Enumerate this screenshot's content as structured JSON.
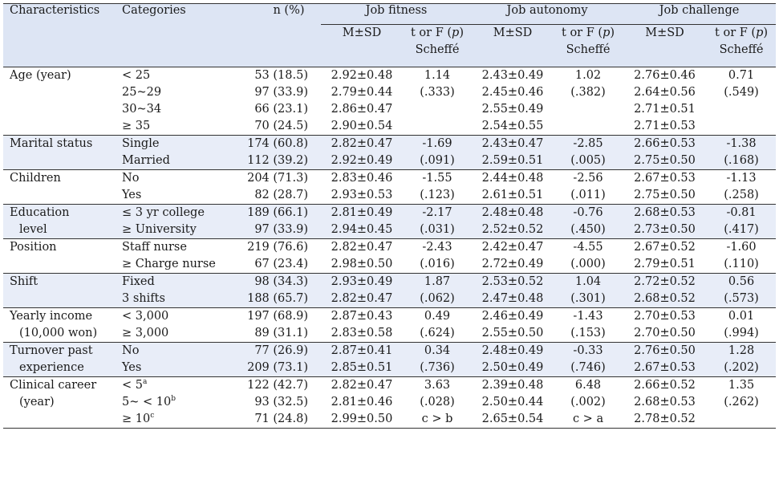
{
  "headers": {
    "characteristics": "Characteristics",
    "categories": "Categories",
    "n": "n (%)",
    "groups": [
      "Job fitness",
      "Job autonomy",
      "Job challenge"
    ],
    "msd": "M±SD",
    "t_line1": "t or F (",
    "t_p": "p",
    "t_line1_end": ")",
    "t_line2": "Scheffé"
  },
  "rows": [
    {
      "char": [
        "Age (year)"
      ],
      "cats": [
        "< 25",
        "25~29",
        "30~34",
        "≥ 35"
      ],
      "n": [
        "53 (18.5)",
        "97 (33.9)",
        "66 (23.1)",
        "70 (24.5)"
      ],
      "jf_msd": [
        "2.92±0.48",
        "2.79±0.44",
        "2.86±0.47",
        "2.90±0.54"
      ],
      "jf_t": [
        "1.14",
        "(.333)"
      ],
      "ja_msd": [
        "2.43±0.49",
        "2.45±0.46",
        "2.55±0.49",
        "2.54±0.55"
      ],
      "ja_t": [
        "1.02",
        "(.382)"
      ],
      "jc_msd": [
        "2.76±0.46",
        "2.64±0.56",
        "2.71±0.51",
        "2.71±0.53"
      ],
      "jc_t": [
        "0.71",
        "(.549)"
      ]
    },
    {
      "char": [
        "Marital status"
      ],
      "cats": [
        "Single",
        "Married"
      ],
      "n": [
        "174 (60.8)",
        "112 (39.2)"
      ],
      "jf_msd": [
        "2.82±0.47",
        "2.92±0.49"
      ],
      "jf_t": [
        "-1.69",
        "(.091)"
      ],
      "ja_msd": [
        "2.43±0.47",
        "2.59±0.51"
      ],
      "ja_t": [
        "-2.85",
        "(.005)"
      ],
      "jc_msd": [
        "2.66±0.53",
        "2.75±0.50"
      ],
      "jc_t": [
        "-1.38",
        "(.168)"
      ]
    },
    {
      "char": [
        "Children"
      ],
      "cats": [
        "No",
        "Yes"
      ],
      "n": [
        "204 (71.3)",
        "82 (28.7)"
      ],
      "jf_msd": [
        "2.83±0.46",
        "2.93±0.53"
      ],
      "jf_t": [
        "-1.55",
        "(.123)"
      ],
      "ja_msd": [
        "2.44±0.48",
        "2.61±0.51"
      ],
      "ja_t": [
        "-2.56",
        "(.011)"
      ],
      "jc_msd": [
        "2.67±0.53",
        "2.75±0.50"
      ],
      "jc_t": [
        "-1.13",
        "(.258)"
      ]
    },
    {
      "char": [
        "Education",
        "level"
      ],
      "cats": [
        "≤ 3 yr college",
        "≥ University"
      ],
      "n": [
        "189 (66.1)",
        "97 (33.9)"
      ],
      "jf_msd": [
        "2.81±0.49",
        "2.94±0.45"
      ],
      "jf_t": [
        "-2.17",
        "(.031)"
      ],
      "ja_msd": [
        "2.48±0.48",
        "2.52±0.52"
      ],
      "ja_t": [
        "-0.76",
        "(.450)"
      ],
      "jc_msd": [
        "2.68±0.53",
        "2.73±0.50"
      ],
      "jc_t": [
        "-0.81",
        "(.417)"
      ]
    },
    {
      "char": [
        "Position"
      ],
      "cats": [
        "Staff nurse",
        "≥ Charge nurse"
      ],
      "n": [
        "219 (76.6)",
        "67 (23.4)"
      ],
      "jf_msd": [
        "2.82±0.47",
        "2.98±0.50"
      ],
      "jf_t": [
        "-2.43",
        "(.016)"
      ],
      "ja_msd": [
        "2.42±0.47",
        "2.72±0.49"
      ],
      "ja_t": [
        "-4.55",
        "(.000)"
      ],
      "jc_msd": [
        "2.67±0.52",
        "2.79±0.51"
      ],
      "jc_t": [
        "-1.60",
        "(.110)"
      ]
    },
    {
      "char": [
        "Shift"
      ],
      "cats": [
        "Fixed",
        "3 shifts"
      ],
      "n": [
        "98 (34.3)",
        "188 (65.7)"
      ],
      "jf_msd": [
        "2.93±0.49",
        "2.82±0.47"
      ],
      "jf_t": [
        "1.87",
        "(.062)"
      ],
      "ja_msd": [
        "2.53±0.52",
        "2.47±0.48"
      ],
      "ja_t": [
        "1.04",
        "(.301)"
      ],
      "jc_msd": [
        "2.72±0.52",
        "2.68±0.52"
      ],
      "jc_t": [
        "0.56",
        "(.573)"
      ]
    },
    {
      "char": [
        "Yearly income",
        "(10,000 won)"
      ],
      "cats": [
        "< 3,000",
        "≥ 3,000"
      ],
      "n": [
        "197 (68.9)",
        "89 (31.1)"
      ],
      "jf_msd": [
        "2.87±0.43",
        "2.83±0.58"
      ],
      "jf_t": [
        "0.49",
        "(.624)"
      ],
      "ja_msd": [
        "2.46±0.49",
        "2.55±0.50"
      ],
      "ja_t": [
        "-1.43",
        "(.153)"
      ],
      "jc_msd": [
        "2.70±0.53",
        "2.70±0.50"
      ],
      "jc_t": [
        "0.01",
        "(.994)"
      ]
    },
    {
      "char": [
        "Turnover past",
        "experience"
      ],
      "cats": [
        "No",
        "Yes"
      ],
      "n": [
        "77 (26.9)",
        "209 (73.1)"
      ],
      "jf_msd": [
        "2.87±0.41",
        "2.85±0.51"
      ],
      "jf_t": [
        "0.34",
        "(.736)"
      ],
      "ja_msd": [
        "2.48±0.49",
        "2.50±0.49"
      ],
      "ja_t": [
        "-0.33",
        "(.746)"
      ],
      "jc_msd": [
        "2.76±0.50",
        "2.67±0.53"
      ],
      "jc_t": [
        "1.28",
        "(.202)"
      ]
    },
    {
      "char": [
        "Clinical career",
        "(year)"
      ],
      "cats": [
        "< 5",
        "5~ < 10",
        "≥ 10"
      ],
      "cat_sups": [
        "a",
        "b",
        "c"
      ],
      "n": [
        "122 (42.7)",
        "93 (32.5)",
        "71 (24.8)"
      ],
      "jf_msd": [
        "2.82±0.47",
        "2.81±0.46",
        "2.99±0.50"
      ],
      "jf_t": [
        "3.63",
        "(.028)",
        "c > b"
      ],
      "ja_msd": [
        "2.39±0.48",
        "2.50±0.44",
        "2.65±0.54"
      ],
      "ja_t": [
        "6.48",
        "(.002)",
        "c > a"
      ],
      "jc_msd": [
        "2.66±0.52",
        "2.68±0.53",
        "2.78±0.52"
      ],
      "jc_t": [
        "1.35",
        "(.262)"
      ]
    }
  ]
}
